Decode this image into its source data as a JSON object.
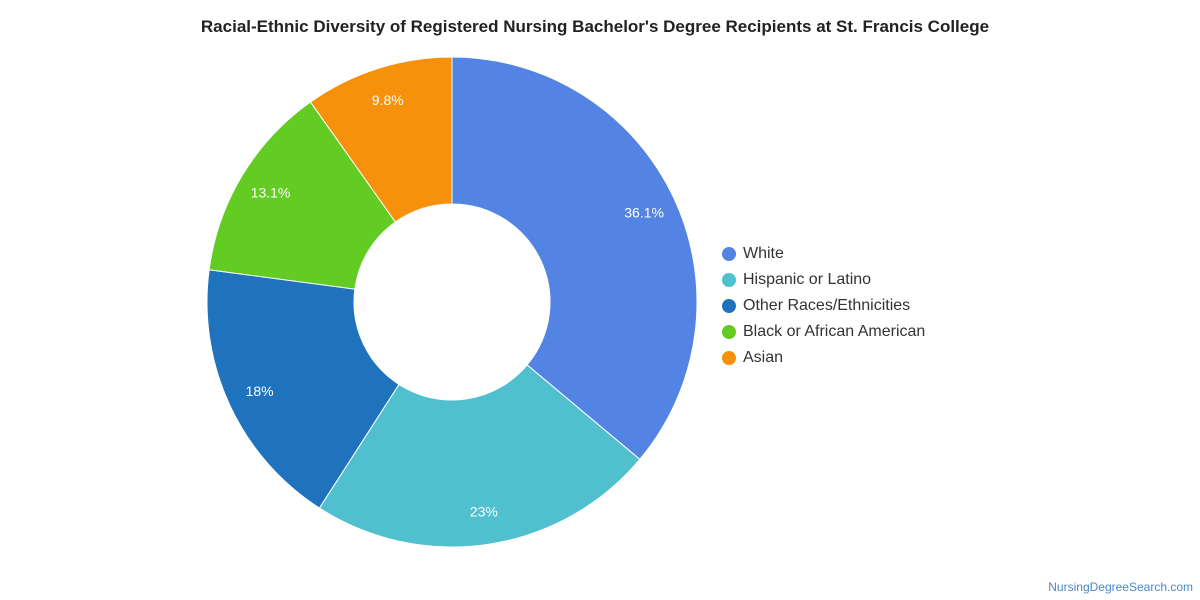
{
  "chart_data": {
    "type": "pie",
    "variant": "donut",
    "title": "Racial-Ethnic Diversity of Registered Nursing Bachelor's Degree Recipients at St. Francis College",
    "categories": [
      "White",
      "Hispanic or Latino",
      "Other Races/Ethnicities",
      "Black or African American",
      "Asian"
    ],
    "values": [
      36.1,
      23,
      18,
      13.1,
      9.8
    ],
    "labels": [
      "36.1%",
      "23%",
      "18%",
      "13.1%",
      "9.8%"
    ],
    "colors": [
      "#5384e3",
      "#50c0cf",
      "#1f73bd",
      "#62cc23",
      "#f7900a"
    ],
    "legend_position": "right"
  },
  "credit": "NursingDegreeSearch.com"
}
